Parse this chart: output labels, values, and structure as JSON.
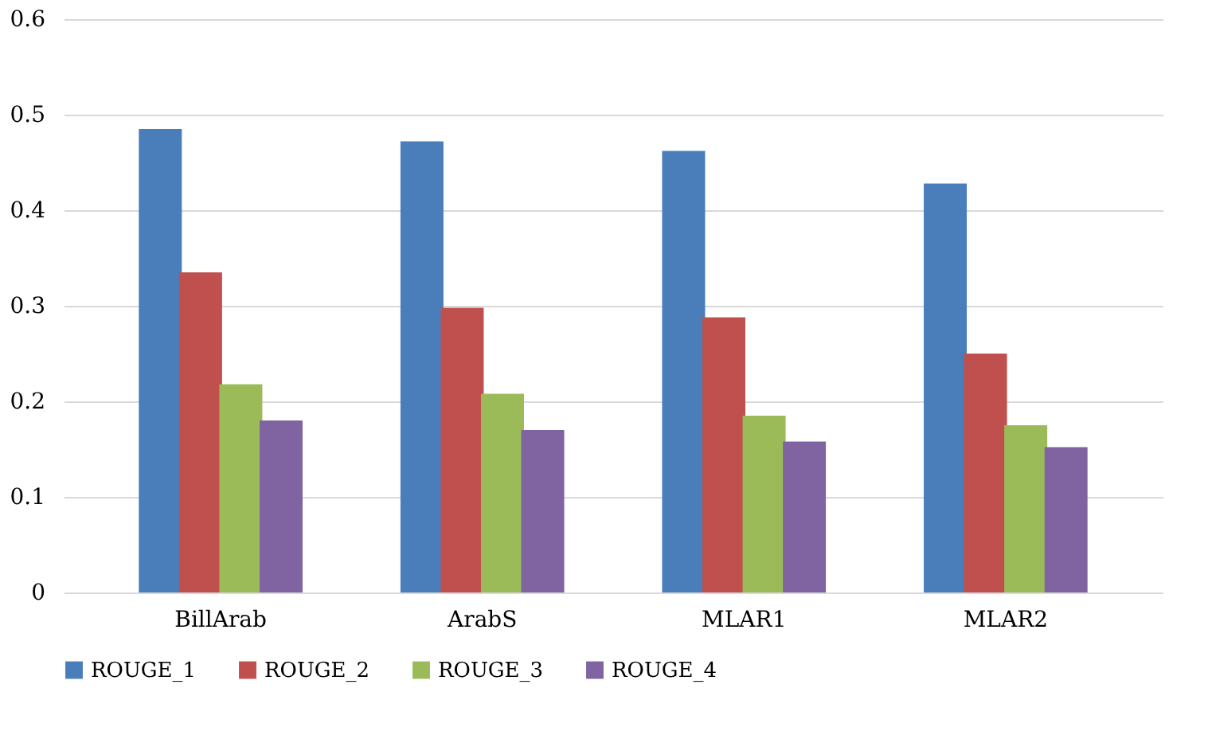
{
  "chart_data": {
    "type": "bar",
    "categories": [
      "BillArab",
      "ArabS",
      "MLAR1",
      "MLAR2"
    ],
    "series": [
      {
        "name": "ROUGE_1",
        "color": "#4a7ebb",
        "values": [
          0.485,
          0.472,
          0.462,
          0.428
        ]
      },
      {
        "name": "ROUGE_2",
        "color": "#c0504d",
        "values": [
          0.335,
          0.298,
          0.288,
          0.25
        ]
      },
      {
        "name": "ROUGE_3",
        "color": "#9bbb59",
        "values": [
          0.218,
          0.208,
          0.185,
          0.175
        ]
      },
      {
        "name": "ROUGE_4",
        "color": "#8064a2",
        "values": [
          0.18,
          0.17,
          0.158,
          0.152
        ]
      }
    ],
    "ylim": [
      0,
      0.6
    ],
    "yticks": [
      0,
      0.1,
      0.2,
      0.3,
      0.4,
      0.5,
      0.6
    ],
    "grid": "y",
    "legend": "bottom"
  }
}
